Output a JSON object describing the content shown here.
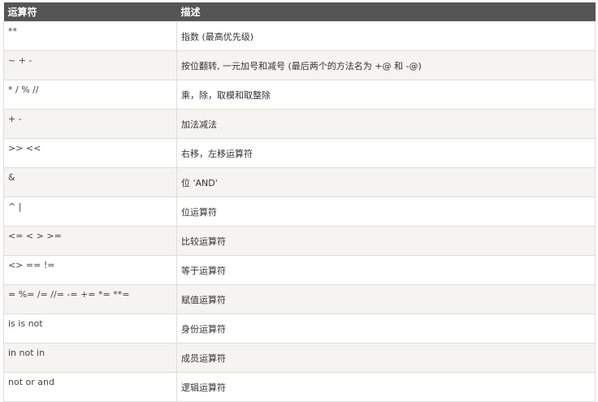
{
  "table": {
    "headers": [
      "运算符",
      "描述"
    ],
    "rows": [
      {
        "op": "**",
        "desc": "指数 (最高优先级)"
      },
      {
        "op": "~ + -",
        "desc": "按位翻转, 一元加号和减号 (最后两个的方法名为 +@ 和 -@)"
      },
      {
        "op": "* / % //",
        "desc": "乘，除，取模和取整除"
      },
      {
        "op": "+ -",
        "desc": "加法减法"
      },
      {
        "op": ">> <<",
        "desc": "右移，左移运算符"
      },
      {
        "op": "&",
        "desc": "位 'AND'"
      },
      {
        "op": "^ |",
        "desc": "位运算符"
      },
      {
        "op": "<= < > >=",
        "desc": "比较运算符"
      },
      {
        "op": "<> == !=",
        "desc": "等于运算符"
      },
      {
        "op": "= %= /= //= -= += *= **=",
        "desc": "赋值运算符"
      },
      {
        "op": "is is not",
        "desc": "身份运算符"
      },
      {
        "op": "in not in",
        "desc": "成员运算符"
      },
      {
        "op": "not or and",
        "desc": "逻辑运算符"
      }
    ]
  }
}
